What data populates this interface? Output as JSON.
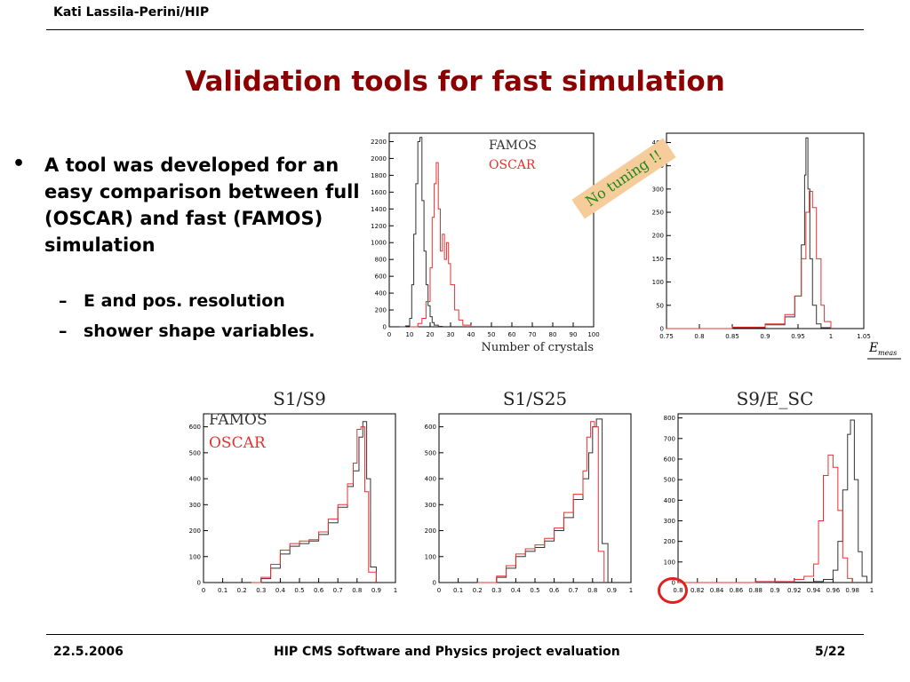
{
  "header": {
    "author": "Kati Lassila-Perini/HIP"
  },
  "slide": {
    "title": "Validation tools for fast simulation"
  },
  "bullets": [
    {
      "text": "A tool was developed  for an easy comparison between full (OSCAR) and fast (FAMOS) simulation",
      "sub": [
        "E and pos. resolution",
        "shower shape variables."
      ]
    }
  ],
  "stamp": {
    "text": "No tuning !!"
  },
  "footer": {
    "date": "22.5.2006",
    "title": "HIP CMS Software and Physics project evaluation",
    "page": "5/22"
  },
  "colors": {
    "title": "#8b0000",
    "famos": "#333333",
    "oscar": "#e83030",
    "stamp_bg": "#f6cc9a",
    "stamp_text": "#1a8a1a"
  },
  "chart_data": [
    {
      "type": "line",
      "xlabel": "Number of crystals",
      "xlim": [
        0,
        100
      ],
      "ylim": [
        0,
        2300
      ],
      "xticks": [
        "0",
        "10",
        "20",
        "30",
        "40",
        "50",
        "60",
        "70",
        "80",
        "90",
        "100"
      ],
      "yticks": [
        "0",
        "200",
        "400",
        "600",
        "800",
        "1000",
        "1200",
        "1400",
        "1600",
        "1800",
        "2000",
        "2200"
      ],
      "legend": [
        "FAMOS",
        "OSCAR"
      ],
      "series": [
        {
          "name": "FAMOS",
          "x": [
            5,
            8,
            10,
            11,
            12,
            13,
            14,
            15,
            16,
            17,
            18,
            19,
            20,
            21,
            22,
            24,
            26
          ],
          "y": [
            0,
            10,
            100,
            500,
            1100,
            1700,
            2200,
            2250,
            1500,
            900,
            500,
            250,
            120,
            50,
            20,
            5,
            0
          ]
        },
        {
          "name": "OSCAR",
          "x": [
            10,
            14,
            16,
            18,
            20,
            21,
            22,
            23,
            24,
            25,
            26,
            27,
            28,
            29,
            30,
            32,
            34,
            36,
            40
          ],
          "y": [
            0,
            40,
            100,
            300,
            700,
            1300,
            1700,
            1950,
            1400,
            900,
            1100,
            800,
            1000,
            750,
            500,
            200,
            80,
            20,
            0
          ]
        }
      ]
    },
    {
      "type": "line",
      "xlabel": "E_meas",
      "xlim": [
        0.75,
        1.05
      ],
      "ylim": [
        0,
        420
      ],
      "xticks": [
        "0.75",
        "0.8",
        "0.85",
        "0.9",
        "0.95",
        "1",
        "1.05"
      ],
      "yticks": [
        "0",
        "50",
        "100",
        "150",
        "200",
        "250",
        "300",
        "350",
        "400"
      ],
      "series": [
        {
          "name": "FAMOS",
          "x": [
            0.75,
            0.85,
            0.9,
            0.93,
            0.945,
            0.955,
            0.96,
            0.962,
            0.965,
            0.968,
            0.972,
            0.978,
            0.985,
            1.0
          ],
          "y": [
            0,
            2,
            8,
            25,
            70,
            180,
            330,
            410,
            300,
            150,
            50,
            10,
            2,
            0
          ]
        },
        {
          "name": "OSCAR",
          "x": [
            0.75,
            0.85,
            0.9,
            0.93,
            0.945,
            0.955,
            0.962,
            0.967,
            0.972,
            0.978,
            0.985,
            0.99,
            1.0
          ],
          "y": [
            0,
            3,
            10,
            30,
            70,
            150,
            250,
            295,
            260,
            150,
            50,
            15,
            0
          ]
        }
      ]
    },
    {
      "type": "line",
      "title": "S1/S9",
      "xlim": [
        0,
        1
      ],
      "ylim": [
        0,
        650
      ],
      "xticks": [
        "0",
        "0.1",
        "0.2",
        "0.3",
        "0.4",
        "0.5",
        "0.6",
        "0.7",
        "0.8",
        "0.9",
        "1"
      ],
      "yticks": [
        "0",
        "100",
        "200",
        "300",
        "400",
        "500",
        "600"
      ],
      "legend": [
        "FAMOS",
        "OSCAR"
      ],
      "series": [
        {
          "name": "FAMOS",
          "x": [
            0.25,
            0.3,
            0.35,
            0.4,
            0.45,
            0.5,
            0.55,
            0.6,
            0.65,
            0.7,
            0.75,
            0.78,
            0.81,
            0.83,
            0.85,
            0.87,
            0.9
          ],
          "y": [
            0,
            15,
            55,
            110,
            140,
            150,
            160,
            185,
            230,
            290,
            370,
            430,
            560,
            620,
            400,
            60,
            0
          ]
        },
        {
          "name": "OSCAR",
          "x": [
            0.25,
            0.3,
            0.35,
            0.4,
            0.45,
            0.5,
            0.55,
            0.6,
            0.65,
            0.7,
            0.75,
            0.78,
            0.8,
            0.82,
            0.84,
            0.86,
            0.9
          ],
          "y": [
            0,
            20,
            70,
            125,
            150,
            160,
            165,
            195,
            245,
            300,
            380,
            460,
            590,
            600,
            350,
            40,
            0
          ]
        }
      ]
    },
    {
      "type": "line",
      "title": "S1/S25",
      "xlim": [
        0,
        1
      ],
      "ylim": [
        0,
        650
      ],
      "xticks": [
        "0",
        "0.1",
        "0.2",
        "0.3",
        "0.4",
        "0.5",
        "0.6",
        "0.7",
        "0.8",
        "0.9",
        "1"
      ],
      "yticks": [
        "0",
        "100",
        "200",
        "300",
        "400",
        "500",
        "600"
      ],
      "series": [
        {
          "name": "FAMOS",
          "x": [
            0.2,
            0.3,
            0.35,
            0.4,
            0.45,
            0.5,
            0.55,
            0.6,
            0.65,
            0.7,
            0.75,
            0.78,
            0.8,
            0.82,
            0.85,
            0.88
          ],
          "y": [
            0,
            20,
            55,
            100,
            120,
            135,
            160,
            200,
            250,
            320,
            400,
            500,
            600,
            630,
            150,
            0
          ]
        },
        {
          "name": "OSCAR",
          "x": [
            0.2,
            0.3,
            0.35,
            0.4,
            0.45,
            0.5,
            0.55,
            0.6,
            0.65,
            0.7,
            0.75,
            0.77,
            0.79,
            0.81,
            0.83,
            0.86
          ],
          "y": [
            0,
            25,
            65,
            110,
            130,
            145,
            170,
            210,
            270,
            340,
            430,
            560,
            620,
            600,
            120,
            0
          ]
        }
      ]
    },
    {
      "type": "line",
      "title": "S9/E_SC",
      "xlim": [
        0.8,
        1
      ],
      "ylim": [
        0,
        820
      ],
      "xticks": [
        "0.8",
        "0.82",
        "0.84",
        "0.86",
        "0.88",
        "0.9",
        "0.92",
        "0.94",
        "0.96",
        "0.98",
        "1"
      ],
      "yticks": [
        "0",
        "100",
        "200",
        "300",
        "400",
        "500",
        "600",
        "700",
        "800"
      ],
      "series": [
        {
          "name": "FAMOS",
          "x": [
            0.8,
            0.9,
            0.94,
            0.95,
            0.96,
            0.965,
            0.97,
            0.975,
            0.978,
            0.982,
            0.986,
            0.99,
            0.995
          ],
          "y": [
            0,
            2,
            5,
            15,
            60,
            200,
            450,
            720,
            790,
            500,
            150,
            30,
            0
          ]
        },
        {
          "name": "OSCAR",
          "x": [
            0.8,
            0.88,
            0.92,
            0.93,
            0.94,
            0.945,
            0.95,
            0.955,
            0.96,
            0.965,
            0.97,
            0.975,
            0.98
          ],
          "y": [
            0,
            5,
            15,
            30,
            90,
            300,
            520,
            620,
            560,
            350,
            120,
            20,
            0
          ]
        }
      ]
    }
  ]
}
